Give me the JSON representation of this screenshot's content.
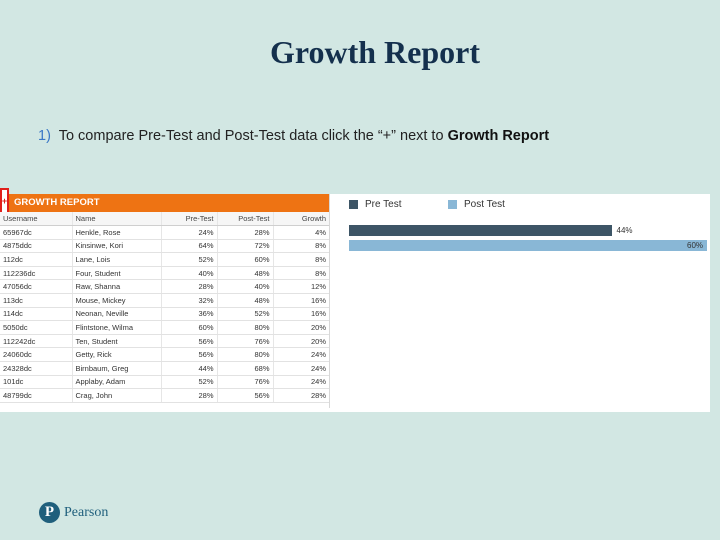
{
  "slide": {
    "title": "Growth Report",
    "instruction": {
      "number": "1)",
      "text": "To compare Pre-Test and Post-Test data click the “+” next to",
      "emphasis": "Growth Report"
    }
  },
  "report": {
    "expand_symbol": "+",
    "header": "GROWTH REPORT",
    "columns": [
      "Username",
      "Name",
      "Pre-Test",
      "Post-Test",
      "Growth"
    ],
    "rows": [
      [
        "65967dc",
        "Henkle, Rose",
        "24%",
        "28%",
        "4%"
      ],
      [
        "4875ddc",
        "Kinsinwe, Kori",
        "64%",
        "72%",
        "8%"
      ],
      [
        "112dc",
        "Lane, Lois",
        "52%",
        "60%",
        "8%"
      ],
      [
        "112236dc",
        "Four, Student",
        "40%",
        "48%",
        "8%"
      ],
      [
        "47056dc",
        "Raw, Shanna",
        "28%",
        "40%",
        "12%"
      ],
      [
        "113dc",
        "Mouse, Mickey",
        "32%",
        "48%",
        "16%"
      ],
      [
        "114dc",
        "Neonan, Neville",
        "36%",
        "52%",
        "16%"
      ],
      [
        "5050dc",
        "Flintstone, Wilma",
        "60%",
        "80%",
        "20%"
      ],
      [
        "112242dc",
        "Ten, Student",
        "56%",
        "76%",
        "20%"
      ],
      [
        "24060dc",
        "Getty, Rick",
        "56%",
        "80%",
        "24%"
      ],
      [
        "24328dc",
        "Birnbaum, Greg",
        "44%",
        "68%",
        "24%"
      ],
      [
        "101dc",
        "Applaby, Adam",
        "52%",
        "76%",
        "24%"
      ],
      [
        "48799dc",
        "Crag, John",
        "28%",
        "56%",
        "28%"
      ]
    ]
  },
  "chart_data": {
    "type": "bar",
    "orientation": "horizontal",
    "categories": [
      ""
    ],
    "series": [
      {
        "name": "Pre Test",
        "values": [
          44
        ],
        "label": "44%",
        "color": "#3d5566"
      },
      {
        "name": "Post Test",
        "values": [
          60
        ],
        "label": "60%",
        "color": "#89b7d6"
      }
    ],
    "xlim": [
      0,
      60
    ],
    "legend": "top-left",
    "grid": false
  },
  "footer": {
    "logo_mark": "P",
    "logo_text": "Pearson"
  }
}
